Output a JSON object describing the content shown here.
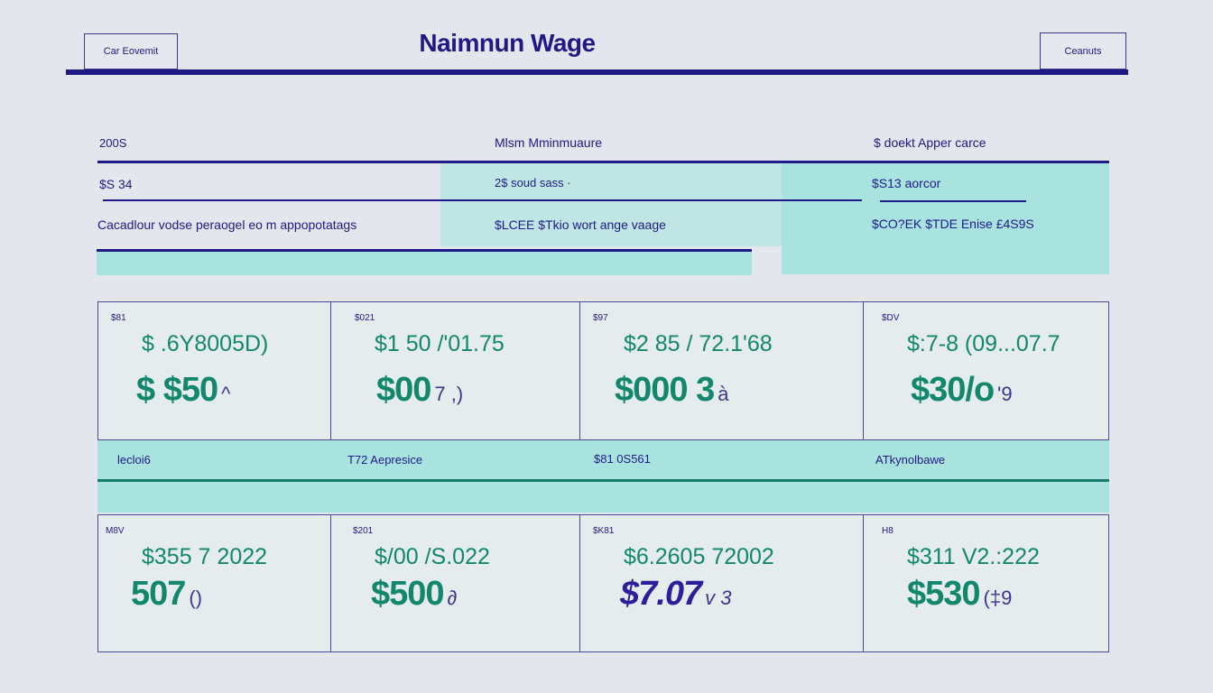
{
  "header": {
    "left_button": "Car Eovemit",
    "title": "Naimnun Wage",
    "right_button": "Ceanuts"
  },
  "table": {
    "headers": [
      "200S",
      "Mlsm Mminmuaure",
      "$ doekt Apper carce"
    ],
    "row1": [
      "$S 34",
      "2$ soud sass ·",
      "$S13 aorcor"
    ],
    "row2": [
      "Cacadlour vodse peraogel eo m appopotatags",
      "$LCEE $Tkio wort ange vaage",
      "$CO?EK $TDE Enise £4S9S"
    ]
  },
  "cards_top": [
    {
      "label": "$81",
      "line1": "$ .6Y8005D)",
      "big": "$ $50",
      "tail": "^"
    },
    {
      "label": "$021",
      "line1": "$1 50 /'01.75",
      "big": "$00",
      "tail": "7 ,)"
    },
    {
      "label": "$97",
      "line1": "$2 85 / 72.1'68",
      "big": "$000 3",
      "tail": "à"
    },
    {
      "label": "$DV",
      "line1": "$:7-8 (09...07.7",
      "big": "$30/o",
      "tail": "'9"
    }
  ],
  "band": {
    "labels": [
      "lecloi6",
      "T72 Aepresice",
      "$81 0S561",
      "ATkynolbawe"
    ]
  },
  "cards_bottom": [
    {
      "label": "M8V",
      "line1": "$355 7 2022",
      "big": "507",
      "tail": "()",
      "navy": false
    },
    {
      "label": "$201",
      "line1": "$/00 /S.022",
      "big": "$500",
      "tail": "∂",
      "navy": false
    },
    {
      "label": "$K81",
      "line1": "$6.2605 72002",
      "big": "$7.07",
      "tail": "v 3",
      "navy": true
    },
    {
      "label": "H8",
      "line1": "$311 V2.:222",
      "big": "$530",
      "tail": "(‡9",
      "navy": false
    }
  ],
  "colors": {
    "navy": "#1f1a86",
    "teal": "#13876c",
    "cyan": "#a9e3e0",
    "background": "#e3e6ec"
  }
}
